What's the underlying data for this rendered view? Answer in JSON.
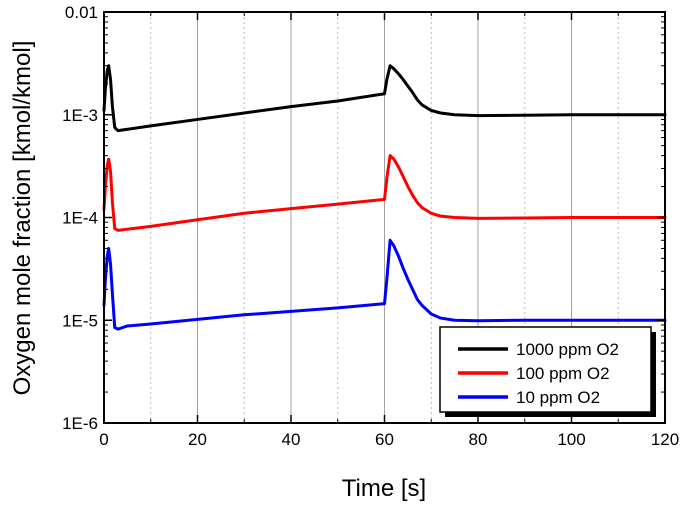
{
  "chart_data": {
    "type": "line",
    "title": "",
    "xlabel": "Time [s]",
    "ylabel": "Oxygen mole fraction [kmol/kmol]",
    "xlim": [
      0,
      120
    ],
    "ylim": [
      1e-06,
      0.01
    ],
    "yscale": "log",
    "x_ticks": [
      0,
      20,
      40,
      60,
      80,
      100,
      120
    ],
    "x_tick_labels": [
      "0",
      "20",
      "40",
      "60",
      "80",
      "100",
      "120"
    ],
    "y_ticks": [
      1e-06,
      1e-05,
      0.0001,
      0.001,
      0.01
    ],
    "y_tick_labels": [
      "1E-6",
      "1E-5",
      "1E-4",
      "1E-3",
      "0.01"
    ],
    "grid": "vertical-dashed",
    "legend_position": "bottom-right",
    "series": [
      {
        "name": "1000 ppm O2",
        "color": "#000000",
        "x": [
          0,
          0.3,
          0.7,
          1.0,
          1.4,
          1.8,
          2.3,
          3,
          10,
          20,
          30,
          40,
          50,
          60,
          60.5,
          61.2,
          62,
          63,
          64,
          65,
          66,
          67,
          68,
          70,
          72,
          75,
          80,
          90,
          100,
          110,
          120
        ],
        "y": [
          0.0011,
          0.0018,
          0.0027,
          0.003,
          0.0022,
          0.0012,
          0.00075,
          0.0007,
          0.00078,
          0.0009,
          0.00104,
          0.0012,
          0.00136,
          0.0016,
          0.0022,
          0.003,
          0.0028,
          0.0025,
          0.0022,
          0.0019,
          0.00165,
          0.0014,
          0.00125,
          0.0011,
          0.00104,
          0.001,
          0.00098,
          0.00099,
          0.001,
          0.001,
          0.001
        ]
      },
      {
        "name": "100 ppm O2",
        "color": "#ff0000",
        "x": [
          0,
          0.3,
          0.7,
          1.0,
          1.4,
          1.8,
          2.3,
          3,
          10,
          20,
          30,
          40,
          50,
          60,
          60.5,
          61.2,
          62,
          63,
          64,
          65,
          66,
          67,
          68,
          70,
          72,
          75,
          80,
          90,
          100,
          110,
          120
        ],
        "y": [
          0.00012,
          0.0002,
          0.00032,
          0.00037,
          0.00028,
          0.00014,
          7.8e-05,
          7.5e-05,
          8.2e-05,
          9.5e-05,
          0.00011,
          0.000122,
          0.000135,
          0.00015,
          0.00024,
          0.0004,
          0.00037,
          0.00031,
          0.00025,
          0.0002,
          0.000165,
          0.00014,
          0.000125,
          0.00011,
          0.000103,
          0.0001,
          9.8e-05,
          9.9e-05,
          0.0001,
          0.0001,
          0.0001
        ]
      },
      {
        "name": "10 ppm O2",
        "color": "#0000ff",
        "x": [
          0,
          0.3,
          0.7,
          1.0,
          1.4,
          1.8,
          2.3,
          3,
          5,
          10,
          20,
          30,
          40,
          50,
          60,
          60.5,
          61.2,
          62,
          63,
          64,
          65,
          66,
          67,
          68,
          70,
          72,
          75,
          80,
          90,
          100,
          110,
          120
        ],
        "y": [
          1.4e-05,
          2.5e-05,
          4.2e-05,
          5e-05,
          3.5e-05,
          1.8e-05,
          8.5e-06,
          8.2e-06,
          8.8e-06,
          9.2e-06,
          1.02e-05,
          1.13e-05,
          1.22e-05,
          1.32e-05,
          1.45e-05,
          2.5e-05,
          6e-05,
          5.3e-05,
          4.2e-05,
          3.2e-05,
          2.5e-05,
          2e-05,
          1.6e-05,
          1.4e-05,
          1.15e-05,
          1.05e-05,
          1e-05,
          9.9e-06,
          1e-05,
          1e-05,
          1e-05,
          1e-05
        ]
      }
    ]
  }
}
